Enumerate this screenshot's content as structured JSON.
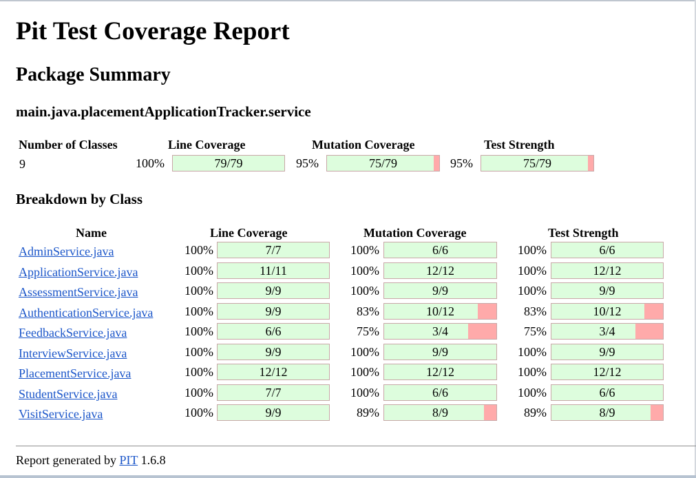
{
  "title": "Pit Test Coverage Report",
  "package_summary_heading": "Package Summary",
  "package_name": "main.java.placementApplicationTracker.service",
  "summary": {
    "headers": {
      "classes": "Number of Classes",
      "line": "Line Coverage",
      "mutation": "Mutation Coverage",
      "strength": "Test Strength"
    },
    "classes": "9",
    "line": {
      "pct": "100%",
      "ratio": "79/79",
      "fraction": 1.0
    },
    "mutation": {
      "pct": "95%",
      "ratio": "75/79",
      "fraction": 0.949
    },
    "strength": {
      "pct": "95%",
      "ratio": "75/79",
      "fraction": 0.949
    }
  },
  "breakdown_heading": "Breakdown by Class",
  "breakdown_headers": {
    "name": "Name",
    "line": "Line Coverage",
    "mutation": "Mutation Coverage",
    "strength": "Test Strength"
  },
  "classes": [
    {
      "name": "AdminService.java",
      "line_pct": "100%",
      "line": "7/7",
      "line_frac": 1.0,
      "mut_pct": "100%",
      "mut": "6/6",
      "mut_frac": 1.0,
      "str_pct": "100%",
      "str": "6/6",
      "str_frac": 1.0
    },
    {
      "name": "ApplicationService.java",
      "line_pct": "100%",
      "line": "11/11",
      "line_frac": 1.0,
      "mut_pct": "100%",
      "mut": "12/12",
      "mut_frac": 1.0,
      "str_pct": "100%",
      "str": "12/12",
      "str_frac": 1.0
    },
    {
      "name": "AssessmentService.java",
      "line_pct": "100%",
      "line": "9/9",
      "line_frac": 1.0,
      "mut_pct": "100%",
      "mut": "9/9",
      "mut_frac": 1.0,
      "str_pct": "100%",
      "str": "9/9",
      "str_frac": 1.0
    },
    {
      "name": "AuthenticationService.java",
      "line_pct": "100%",
      "line": "9/9",
      "line_frac": 1.0,
      "mut_pct": "83%",
      "mut": "10/12",
      "mut_frac": 0.833,
      "str_pct": "83%",
      "str": "10/12",
      "str_frac": 0.833
    },
    {
      "name": "FeedbackService.java",
      "line_pct": "100%",
      "line": "6/6",
      "line_frac": 1.0,
      "mut_pct": "75%",
      "mut": "3/4",
      "mut_frac": 0.75,
      "str_pct": "75%",
      "str": "3/4",
      "str_frac": 0.75
    },
    {
      "name": "InterviewService.java",
      "line_pct": "100%",
      "line": "9/9",
      "line_frac": 1.0,
      "mut_pct": "100%",
      "mut": "9/9",
      "mut_frac": 1.0,
      "str_pct": "100%",
      "str": "9/9",
      "str_frac": 1.0
    },
    {
      "name": "PlacementService.java",
      "line_pct": "100%",
      "line": "12/12",
      "line_frac": 1.0,
      "mut_pct": "100%",
      "mut": "12/12",
      "mut_frac": 1.0,
      "str_pct": "100%",
      "str": "12/12",
      "str_frac": 1.0
    },
    {
      "name": "StudentService.java",
      "line_pct": "100%",
      "line": "7/7",
      "line_frac": 1.0,
      "mut_pct": "100%",
      "mut": "6/6",
      "mut_frac": 1.0,
      "str_pct": "100%",
      "str": "6/6",
      "str_frac": 1.0
    },
    {
      "name": "VisitService.java",
      "line_pct": "100%",
      "line": "9/9",
      "line_frac": 1.0,
      "mut_pct": "89%",
      "mut": "8/9",
      "mut_frac": 0.889,
      "str_pct": "89%",
      "str": "8/9",
      "str_frac": 0.889
    }
  ],
  "footer": {
    "prefix": "Report generated by",
    "link": "PIT",
    "version": "1.6.8"
  },
  "colors": {
    "covered": "#ddfddd",
    "uncovered": "#ffaaaa",
    "link": "#1a55c9"
  }
}
